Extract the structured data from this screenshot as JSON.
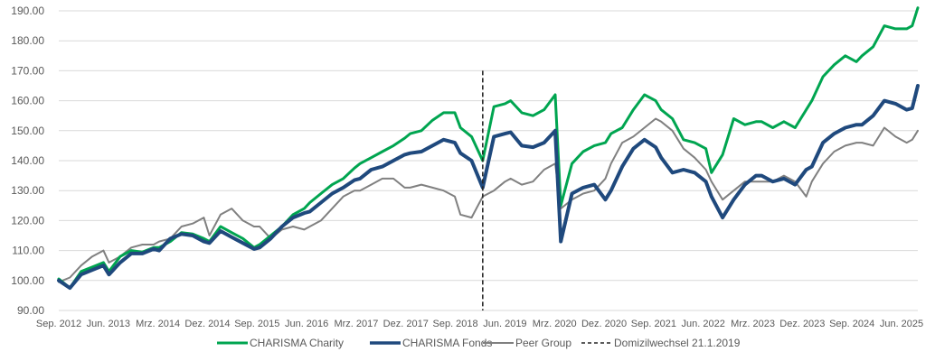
{
  "chart_data": {
    "type": "line",
    "title": "",
    "xlabel": "",
    "ylabel": "",
    "ylim": [
      90,
      190
    ],
    "y_ticks": [
      90,
      100,
      110,
      120,
      130,
      140,
      150,
      160,
      170,
      180,
      190
    ],
    "y_tick_labels": [
      "90.00",
      "100.00",
      "110.00",
      "120.00",
      "130.00",
      "140.00",
      "150.00",
      "160.00",
      "170.00",
      "180.00",
      "190.00"
    ],
    "x_tick_labels": [
      "Sep. 2012",
      "Jun. 2013",
      "Mrz. 2014",
      "Dez. 2014",
      "Sep. 2015",
      "Jun. 2016",
      "Mrz. 2017",
      "Dez. 2017",
      "Sep. 2018",
      "Jun. 2019",
      "Mrz. 2020",
      "Dez. 2020",
      "Sep. 2021",
      "Jun. 2022",
      "Mrz. 2023",
      "Dez. 2023",
      "Sep. 2024",
      "Jun. 2025"
    ],
    "grid": "horizontal",
    "legend_position": "bottom",
    "marker": {
      "label": "Domizilwechsel 21.1.2019",
      "date": "2019-01",
      "style": "dashed",
      "color": "#262626"
    },
    "dates": [
      "2012-09",
      "2012-11",
      "2013-01",
      "2013-03",
      "2013-05",
      "2013-06",
      "2013-08",
      "2013-10",
      "2013-12",
      "2014-02",
      "2014-03",
      "2014-05",
      "2014-07",
      "2014-09",
      "2014-11",
      "2014-12",
      "2015-02",
      "2015-04",
      "2015-06",
      "2015-08",
      "2015-09",
      "2015-11",
      "2016-01",
      "2016-03",
      "2016-05",
      "2016-06",
      "2016-08",
      "2016-10",
      "2016-12",
      "2017-02",
      "2017-03",
      "2017-05",
      "2017-07",
      "2017-09",
      "2017-11",
      "2017-12",
      "2018-02",
      "2018-04",
      "2018-06",
      "2018-08",
      "2018-09",
      "2018-11",
      "2019-01",
      "2019-03",
      "2019-05",
      "2019-06",
      "2019-08",
      "2019-10",
      "2019-12",
      "2020-02",
      "2020-03",
      "2020-05",
      "2020-07",
      "2020-09",
      "2020-11",
      "2020-12",
      "2021-02",
      "2021-04",
      "2021-06",
      "2021-08",
      "2021-09",
      "2021-11",
      "2022-01",
      "2022-03",
      "2022-05",
      "2022-06",
      "2022-08",
      "2022-10",
      "2022-12",
      "2023-02",
      "2023-03",
      "2023-05",
      "2023-07",
      "2023-09",
      "2023-11",
      "2023-12",
      "2024-02",
      "2024-04",
      "2024-06",
      "2024-08",
      "2024-09",
      "2024-11",
      "2025-01",
      "2025-03",
      "2025-05",
      "2025-06",
      "2025-07"
    ],
    "series": [
      {
        "name": "CHARISMA Charity",
        "color": "#00A550",
        "width": 3,
        "values": [
          100.5,
          97.5,
          103,
          104.5,
          106,
          103,
          108,
          110,
          109.5,
          111,
          111,
          113,
          116,
          115.5,
          114,
          113,
          118,
          116,
          114,
          111,
          112,
          115,
          118,
          122,
          124,
          126,
          129,
          132,
          134,
          137.5,
          139,
          141,
          143,
          145,
          147.5,
          149,
          150,
          153.5,
          156,
          156,
          151,
          148,
          140,
          158,
          159,
          160,
          156,
          155,
          157,
          162,
          125,
          139,
          143,
          145,
          146,
          149,
          151,
          157,
          162,
          160,
          157,
          154,
          147,
          146,
          144,
          136,
          142,
          154,
          152,
          153,
          153,
          151,
          153,
          151,
          157,
          160,
          168,
          172,
          175,
          173,
          175,
          178,
          185,
          184,
          184,
          185,
          191
        ]
      },
      {
        "name": "CHARISMA Fonds",
        "color": "#1F497D",
        "width": 4,
        "values": [
          100,
          97.5,
          102,
          103.5,
          105,
          102,
          106,
          109,
          109,
          110.5,
          110,
          114,
          115.5,
          115,
          113,
          112.5,
          116.5,
          114.5,
          112.5,
          110.5,
          111,
          114,
          118,
          121,
          122.5,
          123,
          126,
          129,
          131,
          133.5,
          134,
          137,
          138,
          140,
          142,
          142.5,
          143,
          145,
          147,
          146,
          142.5,
          140,
          131,
          148,
          149,
          149.5,
          145,
          144.5,
          146,
          150,
          113,
          129,
          131,
          132,
          127,
          130,
          138,
          144,
          147,
          144.5,
          141,
          136,
          137,
          136,
          133,
          128,
          121,
          127,
          132,
          135,
          135,
          133,
          134,
          132,
          137,
          138,
          146,
          149,
          151,
          152,
          152,
          155,
          160,
          159,
          157,
          157.5,
          165
        ]
      },
      {
        "name": "Peer Group",
        "color": "#808080",
        "width": 2,
        "values": [
          99.5,
          101,
          105,
          108,
          110,
          106,
          108,
          111,
          112,
          112,
          113,
          114,
          118,
          119,
          121,
          115,
          122,
          124,
          120,
          118,
          118,
          114,
          117,
          118,
          117,
          118,
          120,
          124,
          128,
          130,
          130,
          132,
          134,
          134,
          131,
          131,
          132,
          131,
          130,
          128,
          122,
          121,
          128,
          130,
          133,
          134,
          132,
          133,
          137,
          139,
          124,
          127,
          129,
          130,
          134,
          139,
          146,
          148,
          151,
          154,
          153,
          150,
          144,
          141,
          137,
          133,
          127,
          130,
          133,
          133,
          133,
          133,
          135,
          133,
          128,
          133,
          139,
          143,
          145,
          146,
          146,
          145,
          151,
          148,
          146,
          147,
          150
        ]
      }
    ]
  }
}
